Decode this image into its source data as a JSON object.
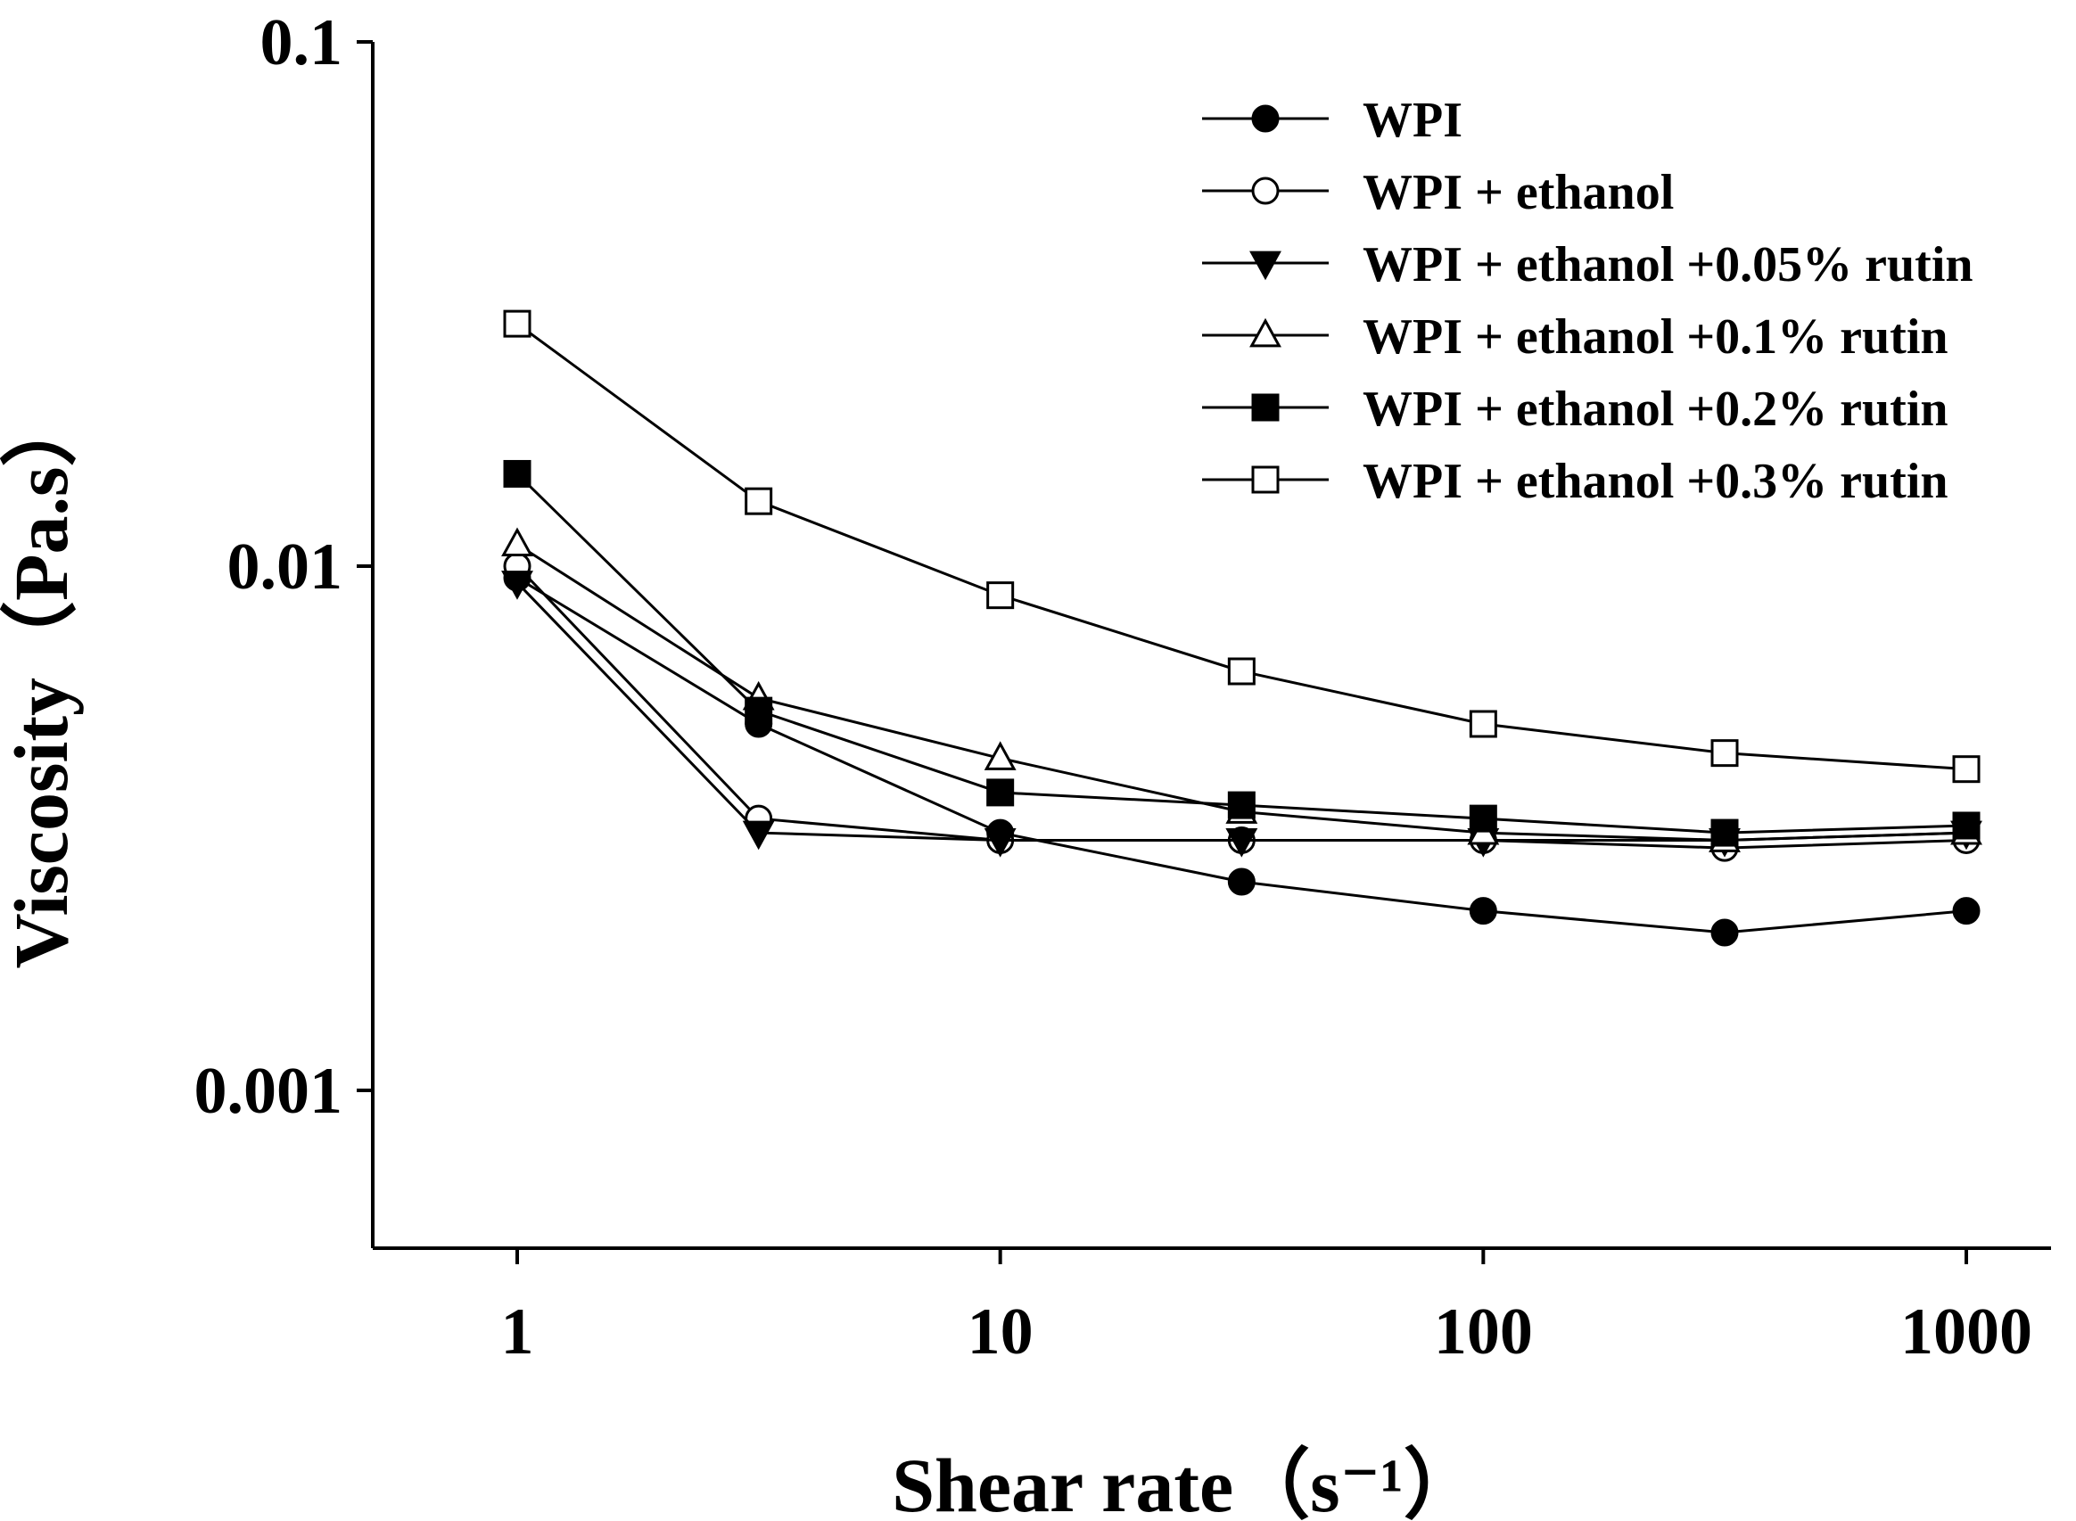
{
  "chart_data": {
    "type": "line",
    "title": "",
    "xlabel": "Shear rate（s⁻¹）",
    "ylabel": "Viscosity（Pa.s）",
    "xscale": "log",
    "yscale": "log",
    "xlim": [
      0.5,
      2000
    ],
    "ylim": [
      0.0005,
      0.1
    ],
    "xticks": [
      {
        "value": 1,
        "label": "1"
      },
      {
        "value": 10,
        "label": "10"
      },
      {
        "value": 100,
        "label": "100"
      },
      {
        "value": 1000,
        "label": "1000"
      }
    ],
    "yticks": [
      {
        "value": 0.001,
        "label": "0.001"
      },
      {
        "value": 0.01,
        "label": "0.01"
      },
      {
        "value": 0.1,
        "label": "0.1"
      }
    ],
    "x": [
      1,
      3.16,
      10,
      31.6,
      100,
      316,
      1000
    ],
    "legend_position": "top-right",
    "grid": false,
    "series": [
      {
        "name": "WPI",
        "marker": "circle-filled",
        "values": [
          0.0095,
          0.005,
          0.0031,
          0.0025,
          0.0022,
          0.002,
          0.0022
        ]
      },
      {
        "name": "WPI + ethanol",
        "marker": "circle-open",
        "values": [
          0.01,
          0.0033,
          0.003,
          0.003,
          0.003,
          0.0029,
          0.003
        ]
      },
      {
        "name": "WPI + ethanol +0.05% rutin",
        "marker": "triangle-down-filled",
        "values": [
          0.0093,
          0.0031,
          0.003,
          0.003,
          0.003,
          0.003,
          0.0031
        ]
      },
      {
        "name": "WPI + ethanol +0.1% rutin",
        "marker": "triangle-up-open",
        "values": [
          0.011,
          0.0056,
          0.0043,
          0.0034,
          0.0031,
          0.003,
          0.0031
        ]
      },
      {
        "name": "WPI + ethanol +0.2% rutin",
        "marker": "square-filled",
        "values": [
          0.015,
          0.0053,
          0.0037,
          0.0035,
          0.0033,
          0.0031,
          0.0032
        ]
      },
      {
        "name": "WPI + ethanol +0.3% rutin",
        "marker": "square-open",
        "values": [
          0.029,
          0.0133,
          0.0088,
          0.0063,
          0.005,
          0.0044,
          0.0041
        ]
      }
    ]
  }
}
